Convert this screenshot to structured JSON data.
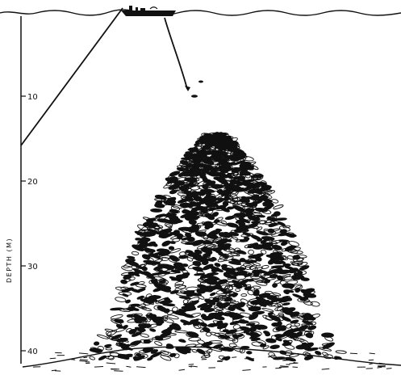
{
  "diagram": {
    "axis": {
      "title": "DEPTH (M)",
      "unit": "m",
      "tick_values": [
        10,
        20,
        30,
        40
      ],
      "tick_labels": [
        "10",
        "20",
        "30",
        "40"
      ],
      "range": [
        0,
        42
      ]
    },
    "scene": {
      "line_end_depth_m": 15,
      "drift_line_end_depth_m": 9.5,
      "school_top_depth_m": 14.5,
      "school_bottom_depth_m": 41,
      "seafloor_depth_m": 42
    },
    "colors": {
      "ink": "#111111",
      "paper": "#ffffff"
    }
  }
}
